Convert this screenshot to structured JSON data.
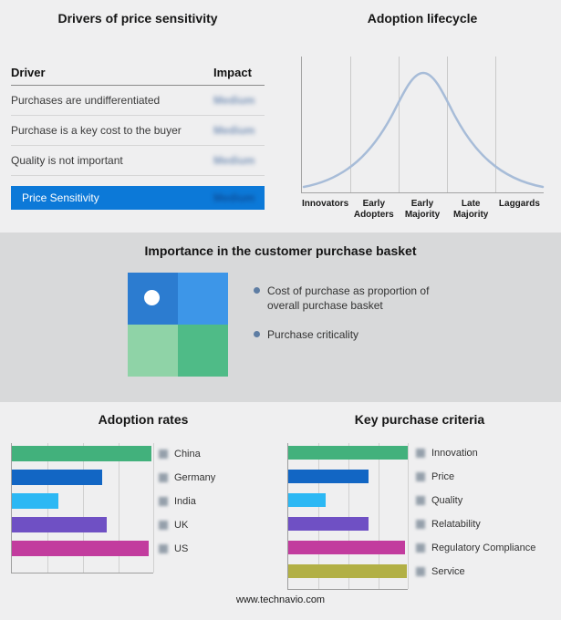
{
  "drivers": {
    "title": "Drivers of price sensitivity",
    "col_driver": "Driver",
    "col_impact": "Impact",
    "rows": [
      {
        "driver": "Purchases are undifferentiated",
        "impact": "Medium"
      },
      {
        "driver": "Purchase is a key cost to the buyer",
        "impact": "Medium"
      },
      {
        "driver": "Quality is not important",
        "impact": "Medium"
      }
    ],
    "summary": {
      "label": "Price Sensitivity",
      "impact": "Medium"
    },
    "highlight_color": "#0c79d8"
  },
  "lifecycle": {
    "title": "Adoption lifecycle",
    "stages": [
      "Innovators",
      "Early Adopters",
      "Early Majority",
      "Late Majority",
      "Laggards"
    ],
    "curve_color": "#a7bcd8"
  },
  "basket": {
    "title": "Importance in the customer purchase basket",
    "bullets": [
      "Cost of purchase as proportion of overall purchase basket",
      "Purchase criticality"
    ],
    "quadrant_colors": {
      "top_left": "#2c7cd0",
      "top_right": "#3d96e8",
      "bottom_left": "#8fd3a7",
      "bottom_right": "#4fbb87"
    }
  },
  "footer": "www.technavio.com",
  "chart_data": [
    {
      "type": "line",
      "title": "Adoption lifecycle",
      "x": [
        "Innovators",
        "Early Adopters",
        "Early Majority",
        "Late Majority",
        "Laggards"
      ],
      "values": [
        12,
        55,
        98,
        55,
        12
      ],
      "description": "Bell-shaped adoption curve peaking at Early Majority",
      "legend": "none",
      "grid": "vertical stage dividers"
    },
    {
      "type": "bar",
      "title": "Adoption rates",
      "orientation": "horizontal",
      "categories": [
        "China",
        "Germany",
        "India",
        "UK",
        "US"
      ],
      "values": [
        99,
        64,
        33,
        67,
        97
      ],
      "colors": [
        "#42b17c",
        "#1266c4",
        "#2cb8f4",
        "#6f50c4",
        "#c23c9e"
      ],
      "xlim": [
        0,
        100
      ],
      "unit": "relative-no-axis-labels"
    },
    {
      "type": "bar",
      "title": "Key purchase criteria",
      "orientation": "horizontal",
      "categories": [
        "Innovation",
        "Price",
        "Quality",
        "Relatability",
        "Regulatory Compliance",
        "Service"
      ],
      "values": [
        100,
        67,
        31,
        67,
        98,
        99
      ],
      "colors": [
        "#42b17c",
        "#1266c4",
        "#2cb8f4",
        "#6f50c4",
        "#c23c9e",
        "#b2b045"
      ],
      "xlim": [
        0,
        100
      ],
      "unit": "relative-no-axis-labels"
    }
  ]
}
